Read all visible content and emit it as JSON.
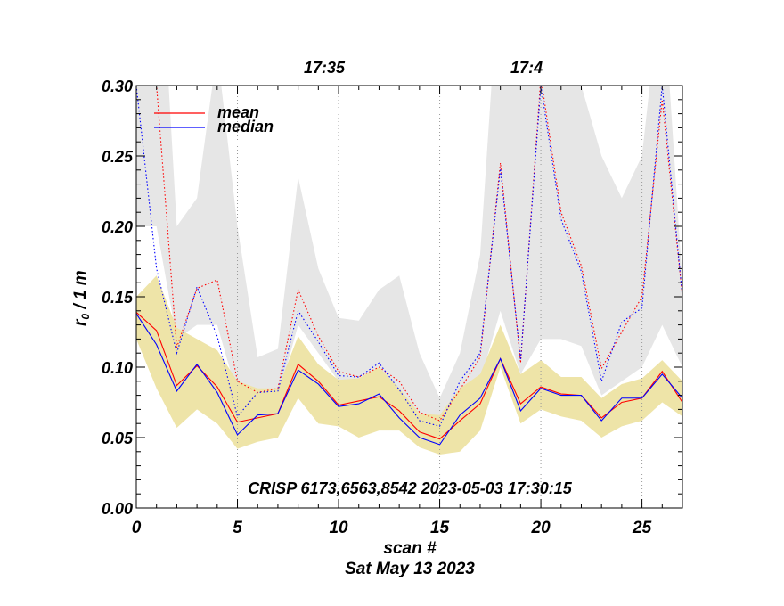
{
  "chart_data": {
    "type": "line",
    "xlabel": "scan #",
    "ylabel_main": "r",
    "ylabel_sub": "0",
    "ylabel_tail": " / 1 m",
    "subtitle": "Sat May 13 2023",
    "annotation": "CRISP 6173,6563,8542 2023-05-03 17:30:15",
    "xlim": [
      0,
      27
    ],
    "ylim": [
      0,
      0.3
    ],
    "x_ticks": [
      0,
      5,
      10,
      15,
      20,
      25
    ],
    "x_tick_labels": [
      "0",
      "5",
      "10",
      "15",
      "20",
      "25"
    ],
    "y_ticks": [
      0,
      0.05,
      0.1,
      0.15,
      0.2,
      0.25,
      0.3
    ],
    "y_tick_labels": [
      "0.00",
      "0.05",
      "0.10",
      "0.15",
      "0.20",
      "0.25",
      "0.30"
    ],
    "time_markers": [
      {
        "x": 10,
        "label": "17:35"
      },
      {
        "x": 20,
        "label": "17:4"
      }
    ],
    "vertical_guides": [
      5,
      10,
      15,
      20,
      25
    ],
    "legend": [
      {
        "name": "mean",
        "color": "#ff0000"
      },
      {
        "name": "median",
        "color": "#0000ff"
      }
    ],
    "x": [
      0,
      1,
      2,
      3,
      4,
      5,
      6,
      7,
      8,
      9,
      10,
      11,
      12,
      13,
      14,
      15,
      16,
      17,
      18,
      19,
      20,
      21,
      22,
      23,
      24,
      25,
      26,
      27
    ],
    "series": [
      {
        "name": "mean",
        "style": "solid",
        "color": "#ff0000",
        "values": [
          0.139,
          0.126,
          0.087,
          0.101,
          0.086,
          0.061,
          0.064,
          0.067,
          0.102,
          0.09,
          0.073,
          0.076,
          0.079,
          0.069,
          0.054,
          0.049,
          0.062,
          0.074,
          0.106,
          0.074,
          0.086,
          0.081,
          0.08,
          0.064,
          0.075,
          0.078,
          0.097,
          0.075
        ]
      },
      {
        "name": "median",
        "style": "solid",
        "color": "#0000ff",
        "values": [
          0.138,
          0.116,
          0.083,
          0.102,
          0.082,
          0.052,
          0.066,
          0.067,
          0.098,
          0.088,
          0.072,
          0.074,
          0.081,
          0.064,
          0.05,
          0.045,
          0.066,
          0.078,
          0.106,
          0.069,
          0.085,
          0.08,
          0.08,
          0.062,
          0.078,
          0.078,
          0.095,
          0.078
        ]
      },
      {
        "name": "mean (upper)",
        "style": "dotted",
        "color": "#ff0000",
        "values": [
          0.36,
          0.3,
          0.114,
          0.156,
          0.162,
          0.09,
          0.082,
          0.085,
          0.155,
          0.122,
          0.097,
          0.093,
          0.1,
          0.09,
          0.068,
          0.062,
          0.084,
          0.107,
          0.245,
          0.103,
          0.306,
          0.21,
          0.172,
          0.099,
          0.125,
          0.15,
          0.29,
          0.15
        ]
      },
      {
        "name": "median (upper)",
        "style": "dotted",
        "color": "#0000ff",
        "values": [
          0.3,
          0.17,
          0.11,
          0.157,
          0.122,
          0.065,
          0.082,
          0.083,
          0.14,
          0.118,
          0.094,
          0.093,
          0.103,
          0.084,
          0.062,
          0.058,
          0.09,
          0.11,
          0.241,
          0.105,
          0.3,
          0.205,
          0.168,
          0.09,
          0.132,
          0.142,
          0.3,
          0.15
        ]
      }
    ],
    "bands": [
      {
        "name": "upper spread",
        "color": "#e6e6e6",
        "lower": [
          0.2,
          0.2,
          0.12,
          0.13,
          0.13,
          0.08,
          0.075,
          0.078,
          0.13,
          0.11,
          0.09,
          0.09,
          0.095,
          0.082,
          0.062,
          0.06,
          0.075,
          0.09,
          0.14,
          0.095,
          0.12,
          0.12,
          0.115,
          0.08,
          0.09,
          0.1,
          0.13,
          0.1
        ],
        "upper": [
          0.45,
          0.45,
          0.2,
          0.22,
          0.325,
          0.2,
          0.107,
          0.113,
          0.235,
          0.17,
          0.135,
          0.133,
          0.155,
          0.165,
          0.11,
          0.078,
          0.11,
          0.18,
          0.395,
          0.3,
          0.33,
          0.3,
          0.3,
          0.25,
          0.22,
          0.25,
          0.38,
          0.16
        ]
      },
      {
        "name": "lower spread",
        "color": "#eee4a8",
        "lower": [
          0.12,
          0.085,
          0.057,
          0.07,
          0.06,
          0.042,
          0.047,
          0.05,
          0.078,
          0.06,
          0.058,
          0.05,
          0.055,
          0.055,
          0.043,
          0.038,
          0.04,
          0.055,
          0.1,
          0.06,
          0.07,
          0.065,
          0.062,
          0.05,
          0.058,
          0.062,
          0.075,
          0.065
        ],
        "upper": [
          0.15,
          0.165,
          0.128,
          0.12,
          0.112,
          0.09,
          0.085,
          0.085,
          0.122,
          0.102,
          0.091,
          0.092,
          0.1,
          0.085,
          0.067,
          0.066,
          0.085,
          0.095,
          0.13,
          0.095,
          0.105,
          0.093,
          0.093,
          0.078,
          0.088,
          0.092,
          0.105,
          0.09
        ]
      }
    ]
  }
}
